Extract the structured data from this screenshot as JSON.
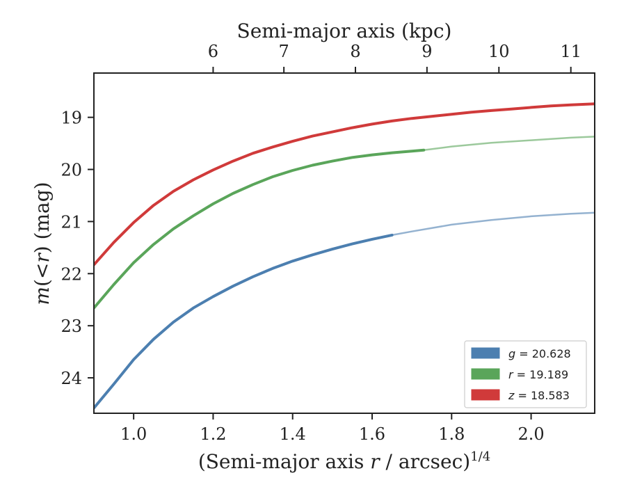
{
  "chart_data": {
    "type": "line",
    "xlabel": "(Semi-major axis r / arcsec)1/4",
    "ylabel": "m(<r) (mag)",
    "top_xlabel": "Semi-major axis (kpc)",
    "xlim": [
      0.9,
      2.16
    ],
    "ylim": [
      24.68,
      18.15
    ],
    "y_inverted": true,
    "x_ticks": [
      1.0,
      1.2,
      1.4,
      1.6,
      1.8,
      2.0
    ],
    "x_tick_labels": [
      "1.0",
      "1.2",
      "1.4",
      "1.6",
      "1.8",
      "2.0"
    ],
    "y_ticks": [
      19,
      20,
      21,
      22,
      23,
      24
    ],
    "y_tick_labels": [
      "19",
      "20",
      "21",
      "22",
      "23",
      "24"
    ],
    "top_ticks": [
      1.2,
      1.378,
      1.558,
      1.738,
      1.919,
      2.1
    ],
    "top_tick_labels": [
      "6",
      "7",
      "8",
      "9",
      "10",
      "11"
    ],
    "legend_position": "bottom-right",
    "series": [
      {
        "name": "g = 20.628",
        "color": "#4c7fb0",
        "x": [
          0.9,
          0.95,
          1.0,
          1.05,
          1.1,
          1.15,
          1.2,
          1.25,
          1.3,
          1.35,
          1.4,
          1.45,
          1.5,
          1.55,
          1.6,
          1.65,
          1.7,
          1.8,
          1.9,
          2.0,
          2.1,
          2.16
        ],
        "y": [
          24.58,
          24.12,
          23.65,
          23.26,
          22.93,
          22.66,
          22.44,
          22.24,
          22.06,
          21.9,
          21.76,
          21.64,
          21.53,
          21.43,
          21.34,
          21.26,
          21.19,
          21.06,
          20.97,
          20.9,
          20.85,
          20.83
        ],
        "solid_until": 1.65
      },
      {
        "name": "r = 19.189",
        "color": "#5aa55a",
        "x": [
          0.9,
          0.95,
          1.0,
          1.05,
          1.1,
          1.15,
          1.2,
          1.25,
          1.3,
          1.35,
          1.4,
          1.45,
          1.5,
          1.55,
          1.6,
          1.65,
          1.7,
          1.73,
          1.8,
          1.9,
          2.0,
          2.1,
          2.16
        ],
        "y": [
          22.66,
          22.21,
          21.79,
          21.44,
          21.14,
          20.89,
          20.66,
          20.46,
          20.29,
          20.14,
          20.02,
          19.92,
          19.84,
          19.77,
          19.72,
          19.68,
          19.65,
          19.63,
          19.56,
          19.49,
          19.44,
          19.39,
          19.37
        ],
        "solid_until": 1.73
      },
      {
        "name": "z = 18.583",
        "color": "#d03a3a",
        "x": [
          0.9,
          0.95,
          1.0,
          1.05,
          1.1,
          1.15,
          1.2,
          1.25,
          1.3,
          1.35,
          1.4,
          1.45,
          1.5,
          1.55,
          1.6,
          1.65,
          1.7,
          1.75,
          1.8,
          1.85,
          1.9,
          1.95,
          2.0,
          2.05,
          2.1,
          2.16
        ],
        "y": [
          21.83,
          21.4,
          21.02,
          20.69,
          20.42,
          20.2,
          20.01,
          19.84,
          19.69,
          19.57,
          19.46,
          19.36,
          19.28,
          19.2,
          19.13,
          19.07,
          19.02,
          18.98,
          18.94,
          18.9,
          18.87,
          18.84,
          18.81,
          18.78,
          18.76,
          18.74
        ],
        "solid_until": 2.16
      }
    ]
  }
}
